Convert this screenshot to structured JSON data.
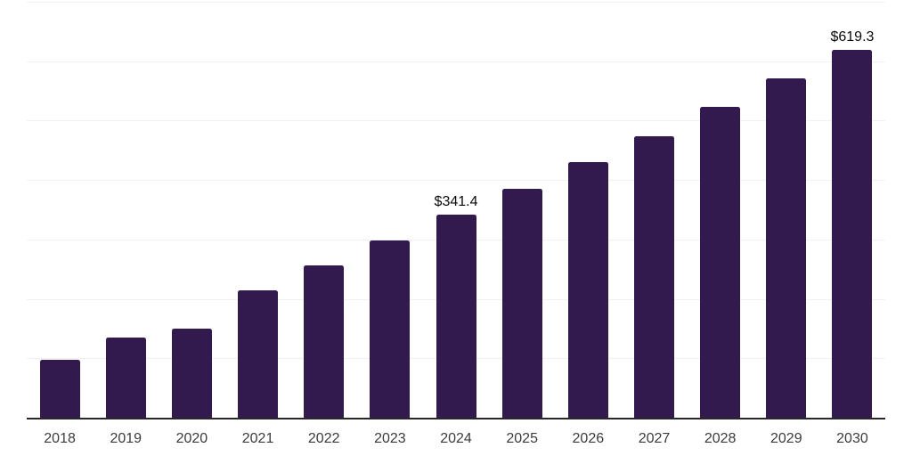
{
  "chart_data": {
    "type": "bar",
    "title": "",
    "xlabel": "",
    "ylabel": "",
    "categories": [
      "2018",
      "2019",
      "2020",
      "2021",
      "2022",
      "2023",
      "2024",
      "2025",
      "2026",
      "2027",
      "2028",
      "2029",
      "2030"
    ],
    "values": [
      97.5,
      134.5,
      149.3,
      214.0,
      255.9,
      297.8,
      341.4,
      384.6,
      429.5,
      474.4,
      523.8,
      571.7,
      619.3
    ],
    "data_labels": {
      "2024": "$341.4",
      "2030": "$619.3"
    },
    "ylim": [
      0,
      700
    ],
    "gridline_step": 100,
    "grid": "horizontal-only",
    "y_tick_labels_visible": false,
    "legend": "none",
    "colors": {
      "bar": "#331a4e",
      "gridline": "#f1f1f3",
      "axis_line": "#282828",
      "tick_label": "#3b3b3b",
      "data_label": "#0a0a0a",
      "background": "#ffffff"
    }
  }
}
